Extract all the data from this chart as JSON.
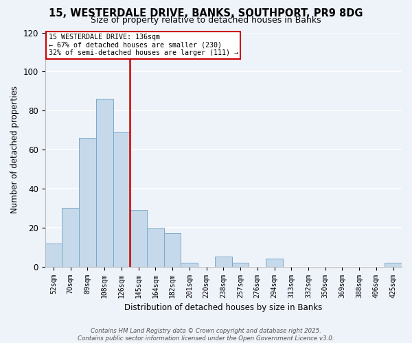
{
  "title": "15, WESTERDALE DRIVE, BANKS, SOUTHPORT, PR9 8DG",
  "subtitle": "Size of property relative to detached houses in Banks",
  "xlabel": "Distribution of detached houses by size in Banks",
  "ylabel": "Number of detached properties",
  "bar_color": "#c6d9ea",
  "bar_edge_color": "#7aaac8",
  "background_color": "#eef2f9",
  "grid_color": "#ffffff",
  "bin_labels": [
    "52sqm",
    "70sqm",
    "89sqm",
    "108sqm",
    "126sqm",
    "145sqm",
    "164sqm",
    "182sqm",
    "201sqm",
    "220sqm",
    "238sqm",
    "257sqm",
    "276sqm",
    "294sqm",
    "313sqm",
    "332sqm",
    "350sqm",
    "369sqm",
    "388sqm",
    "406sqm",
    "425sqm"
  ],
  "bar_values": [
    12,
    30,
    66,
    86,
    69,
    29,
    20,
    17,
    2,
    0,
    5,
    2,
    0,
    4,
    0,
    0,
    0,
    0,
    0,
    0,
    2
  ],
  "property_line_x": 4.5,
  "annotation_line1": "15 WESTERDALE DRIVE: 136sqm",
  "annotation_line2": "← 67% of detached houses are smaller (230)",
  "annotation_line3": "32% of semi-detached houses are larger (111) →",
  "vline_color": "#cc0000",
  "ylim": [
    0,
    120
  ],
  "yticks": [
    0,
    20,
    40,
    60,
    80,
    100,
    120
  ],
  "footer_text": "Contains HM Land Registry data © Crown copyright and database right 2025.\nContains public sector information licensed under the Open Government Licence v3.0.",
  "figsize": [
    6.0,
    5.0
  ],
  "dpi": 100
}
